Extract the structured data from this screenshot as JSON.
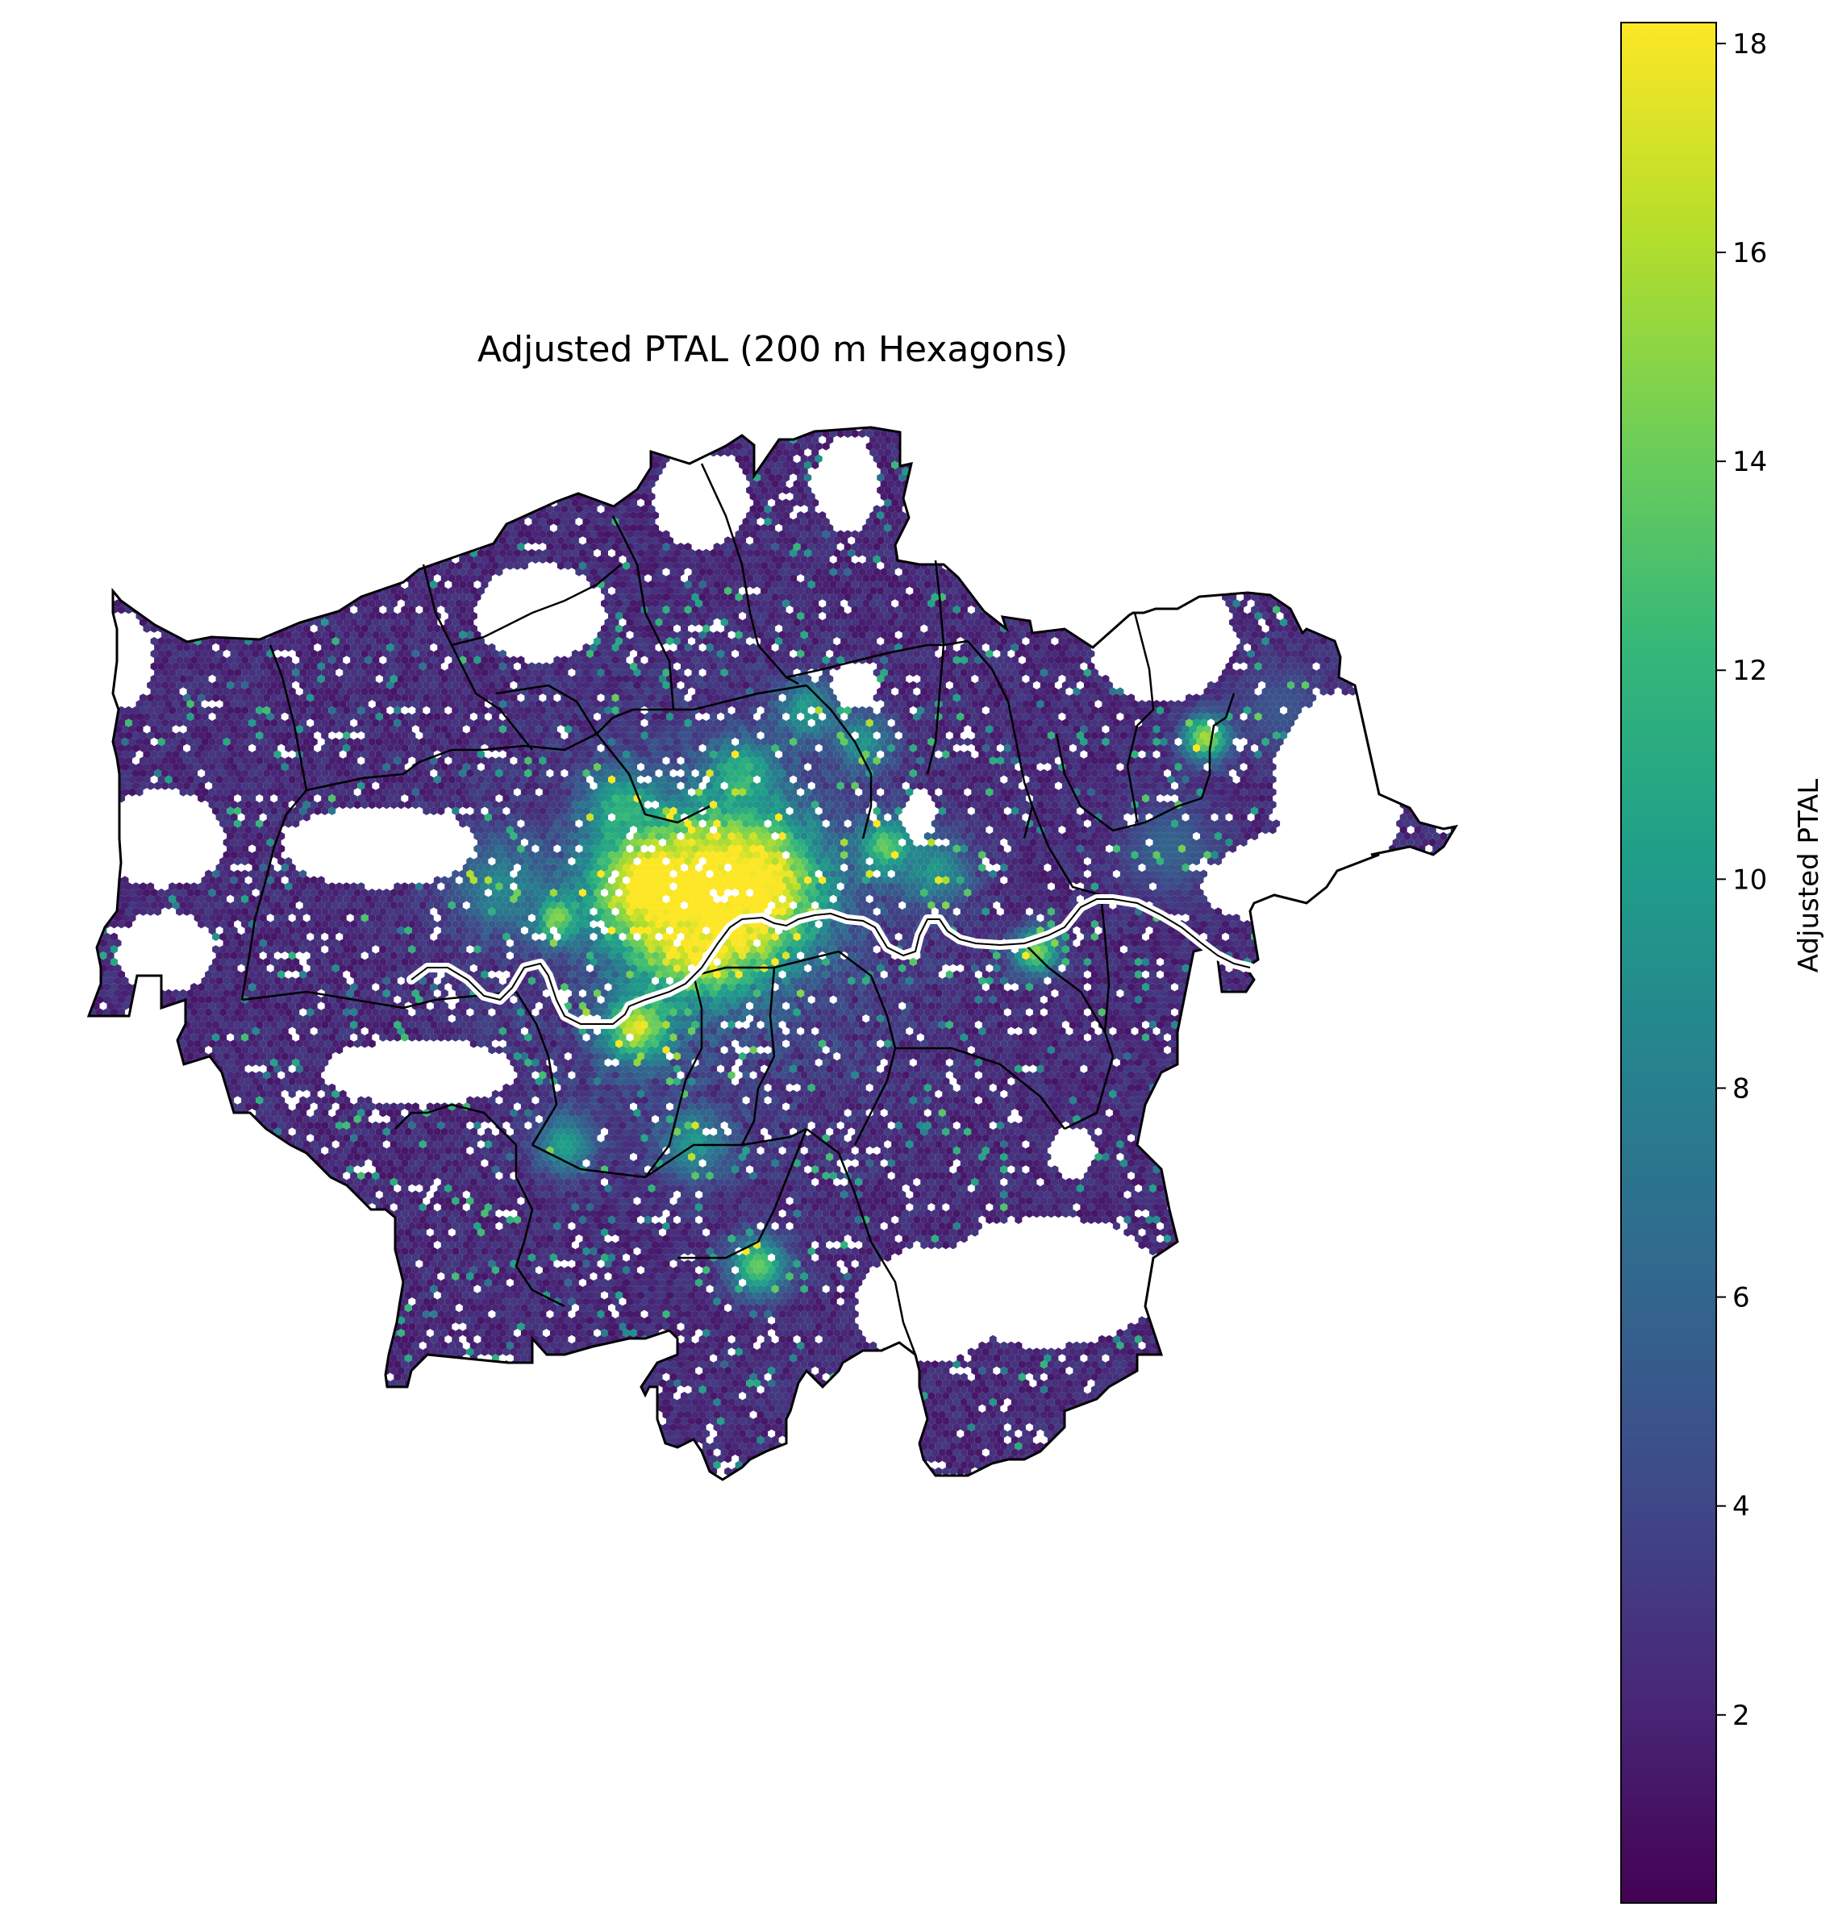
{
  "figure": {
    "title": "Adjusted PTAL (200 m Hexagons)"
  },
  "chart_data": {
    "type": "heatmap",
    "title": "Adjusted PTAL (200 m Hexagons)",
    "map_subject": "London boroughs, hexagon grid",
    "colormap": "viridis",
    "colorbar": {
      "label": "Adjusted PTAL",
      "range": [
        0.2,
        18.2
      ],
      "ticks": [
        2,
        4,
        6,
        8,
        10,
        12,
        14,
        16,
        18
      ],
      "tick_labels": [
        "2",
        "4",
        "6",
        "8",
        "10",
        "12",
        "14",
        "16",
        "18"
      ],
      "colors": [
        "#440154",
        "#482878",
        "#3e4a89",
        "#31688e",
        "#26828e",
        "#1f9e89",
        "#35b779",
        "#6ece58",
        "#b5de2b",
        "#fde725"
      ]
    },
    "background_color": "#ffffff",
    "boundary_color": "#000000"
  }
}
